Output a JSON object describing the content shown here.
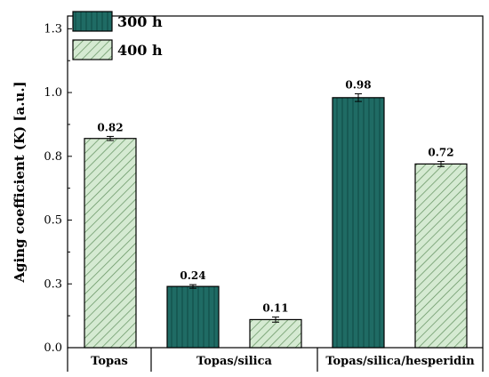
{
  "chart_data": {
    "type": "bar",
    "ylabel": "Aging coefficient (K) [a.u.]",
    "ylim": [
      0.0,
      1.3
    ],
    "yticks": [
      "0.0",
      "0.3",
      "0.5",
      "0.8",
      "1.0",
      "1.3"
    ],
    "ytick_values": [
      0.0,
      0.25,
      0.5,
      0.75,
      1.0,
      1.25
    ],
    "grid": false,
    "legend_position": "top-left",
    "series": [
      {
        "name": "300 h",
        "color": "#1f6b64",
        "pattern": "vertical-stripes"
      },
      {
        "name": "400 h",
        "color": "#cfe6cc",
        "pattern": "diagonal-hatch"
      }
    ],
    "bars": [
      {
        "group": "Topas",
        "series": "400 h",
        "value": 0.82,
        "label": "0.82",
        "error": 0.008
      },
      {
        "group": "Topas/silica",
        "series": "300 h",
        "value": 0.24,
        "label": "0.24",
        "error": 0.007
      },
      {
        "group": "Topas/silica",
        "series": "400 h",
        "value": 0.11,
        "label": "0.11",
        "error": 0.01
      },
      {
        "group": "Topas/silica/hesperidin",
        "series": "300 h",
        "value": 0.98,
        "label": "0.98",
        "error": 0.015
      },
      {
        "group": "Topas/silica/hesperidin",
        "series": "400 h",
        "value": 0.72,
        "label": "0.72",
        "error": 0.01
      }
    ],
    "groups": [
      "Topas",
      "Topas/silica",
      "Topas/silica/hesperidin"
    ]
  }
}
